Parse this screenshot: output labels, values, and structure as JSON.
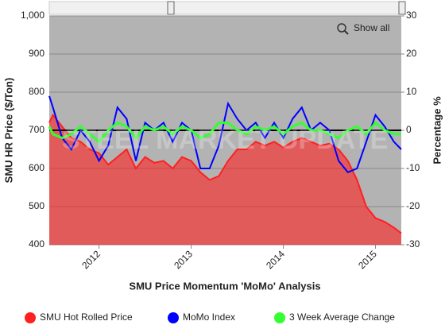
{
  "chart_data": {
    "type": "line",
    "x_title": "SMU Price Momentum 'MoMo' Analysis",
    "y_title": "SMU HR Price ($/Ton)",
    "y2_title": "Percentage %",
    "watermark": "STEEL MARKET UPDATE",
    "button": "Show all",
    "xlim": [
      2011.46,
      2015.28
    ],
    "xticks": [
      2012,
      2013,
      2014,
      2015
    ],
    "ylim": [
      400,
      1000
    ],
    "yticks": [
      {
        "value": 400,
        "label": "400"
      },
      {
        "value": 500,
        "label": "500"
      },
      {
        "value": 600,
        "label": "600"
      },
      {
        "value": 700,
        "label": "700"
      },
      {
        "value": 800,
        "label": "800"
      },
      {
        "value": 900,
        "label": "900"
      },
      {
        "value": 1000,
        "label": "1,000"
      }
    ],
    "y2lim": [
      -30,
      30
    ],
    "y2ticks": [
      -30,
      -20,
      -10,
      0,
      10,
      20,
      30
    ],
    "grid": true,
    "y2_zero_line": true,
    "x": [
      2011.46,
      2011.5,
      2011.6,
      2011.7,
      2011.8,
      2011.9,
      2012.0,
      2012.1,
      2012.2,
      2012.3,
      2012.4,
      2012.5,
      2012.6,
      2012.7,
      2012.8,
      2012.9,
      2013.0,
      2013.1,
      2013.2,
      2013.3,
      2013.4,
      2013.5,
      2013.6,
      2013.7,
      2013.8,
      2013.9,
      2014.0,
      2014.1,
      2014.2,
      2014.3,
      2014.4,
      2014.5,
      2014.6,
      2014.7,
      2014.8,
      2014.9,
      2015.0,
      2015.1,
      2015.2,
      2015.28
    ],
    "series": [
      {
        "name": "SMU Hot Rolled Price",
        "color": "#ff2020",
        "type": "area",
        "values": [
          720,
          740,
          710,
          680,
          670,
          650,
          640,
          610,
          630,
          650,
          600,
          630,
          615,
          620,
          600,
          630,
          620,
          590,
          570,
          580,
          620,
          650,
          650,
          670,
          660,
          670,
          655,
          670,
          680,
          670,
          660,
          665,
          650,
          620,
          570,
          500,
          470,
          460,
          445,
          430
        ]
      },
      {
        "name": "MoMo Index",
        "color": "#0000ff",
        "axis": "y2",
        "values": [
          9,
          6,
          -2,
          -5,
          0,
          -3,
          -8,
          -4,
          6,
          3,
          -8,
          2,
          0,
          2,
          -3,
          2,
          0,
          -10,
          -10,
          -4,
          7,
          3,
          0,
          2,
          -2,
          2,
          -2,
          3,
          6,
          0,
          2,
          0,
          -8,
          -11,
          -10,
          -3,
          4,
          1,
          -3,
          -5
        ]
      },
      {
        "name": "3 Week Average Change",
        "color": "#33ff33",
        "axis": "y2",
        "values": [
          1,
          -1,
          -2,
          -1,
          1,
          -1,
          -3,
          0,
          2,
          1,
          -2,
          1,
          0,
          1,
          -1,
          1,
          0,
          -2,
          -1,
          2,
          2,
          0,
          -1,
          1,
          0,
          1,
          -1,
          1,
          2,
          0,
          0,
          -1,
          -2,
          0,
          1,
          -1,
          2,
          0,
          -1,
          -1
        ]
      }
    ]
  }
}
